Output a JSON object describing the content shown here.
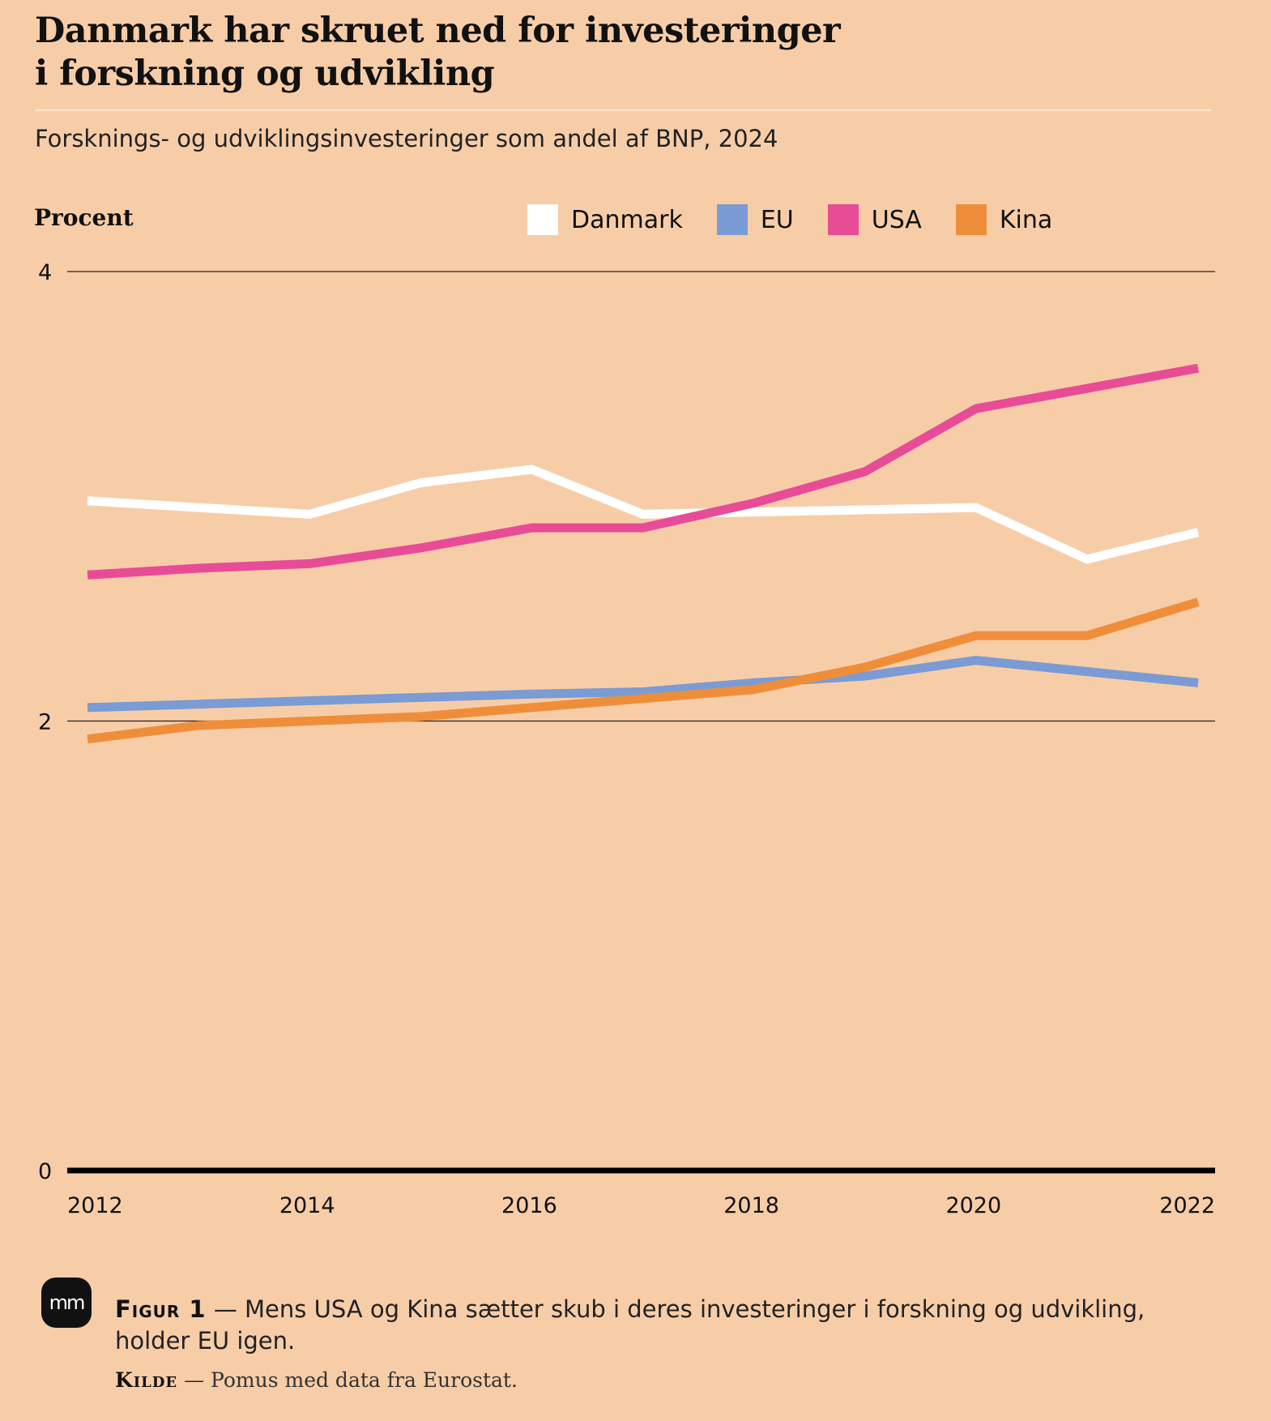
{
  "title": {
    "line1": "Danmark har skruet ned for investeringer",
    "line2": "i forskning og udvikling"
  },
  "subtitle": "Forsknings- og udviklingsinvesteringer som andel af BNP, 2024",
  "y_unit_label": "Procent",
  "legend": [
    {
      "name": "Danmark",
      "color": "#ffffff"
    },
    {
      "name": "EU",
      "color": "#7b9bd4"
    },
    {
      "name": "USA",
      "color": "#e84c96"
    },
    {
      "name": "Kina",
      "color": "#ef8e3a"
    }
  ],
  "caption": {
    "fig": "Figur 1",
    "text": "— Mens USA og Kina sætter skub i deres investeringer i forskning og udvikling, holder EU igen."
  },
  "source": {
    "label": "Kilde",
    "text": "— Pomus med data fra Eurostat."
  },
  "logo_text": "mm",
  "chart_data": {
    "type": "line",
    "ylabel": "Procent",
    "ylim": [
      0,
      4
    ],
    "yticks": [
      "0",
      "2",
      "4"
    ],
    "xticks": [
      "2012",
      "2014",
      "2016",
      "2018",
      "2020",
      "2022"
    ],
    "xlim": [
      2012,
      2022
    ],
    "grid": true,
    "legend_position": "top-right",
    "series": [
      {
        "name": "Danmark",
        "color": "#ffffff",
        "points": [
          [
            2012,
            2.98
          ],
          [
            2014,
            2.92
          ],
          [
            2015,
            3.06
          ],
          [
            2016,
            3.12
          ],
          [
            2017,
            2.92
          ],
          [
            2018,
            2.93
          ],
          [
            2019,
            2.94
          ],
          [
            2020,
            2.95
          ],
          [
            2021,
            2.72
          ],
          [
            2022,
            2.84
          ]
        ]
      },
      {
        "name": "EU",
        "color": "#7b9bd4",
        "points": [
          [
            2012,
            2.06
          ],
          [
            2014,
            2.09
          ],
          [
            2016,
            2.12
          ],
          [
            2017,
            2.13
          ],
          [
            2018,
            2.17
          ],
          [
            2019,
            2.2
          ],
          [
            2020,
            2.27
          ],
          [
            2021,
            2.22
          ],
          [
            2022,
            2.17
          ]
        ]
      },
      {
        "name": "USA",
        "color": "#e84c96",
        "points": [
          [
            2012,
            2.65
          ],
          [
            2013,
            2.68
          ],
          [
            2014,
            2.7
          ],
          [
            2015,
            2.77
          ],
          [
            2016,
            2.86
          ],
          [
            2017,
            2.86
          ],
          [
            2018,
            2.97
          ],
          [
            2019,
            3.11
          ],
          [
            2020,
            3.39
          ],
          [
            2021,
            3.48
          ],
          [
            2022,
            3.57
          ]
        ]
      },
      {
        "name": "Kina",
        "color": "#ef8e3a",
        "points": [
          [
            2012,
            1.92
          ],
          [
            2013,
            1.98
          ],
          [
            2014,
            2.0
          ],
          [
            2015,
            2.02
          ],
          [
            2016,
            2.06
          ],
          [
            2017,
            2.1
          ],
          [
            2018,
            2.14
          ],
          [
            2019,
            2.24
          ],
          [
            2020,
            2.38
          ],
          [
            2021,
            2.38
          ],
          [
            2022,
            2.53
          ]
        ]
      }
    ]
  }
}
